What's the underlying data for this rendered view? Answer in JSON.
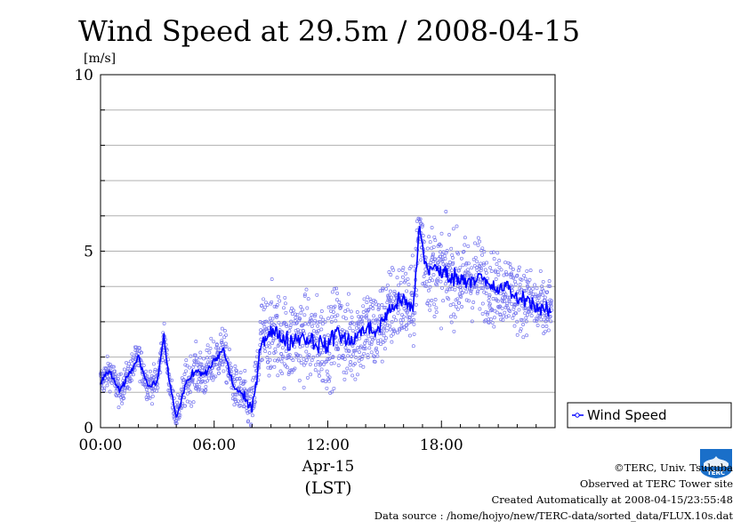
{
  "chart_data": {
    "type": "scatter",
    "title": "Wind Speed at 29.5m / 2008-04-15",
    "ylabel": "[m/s]",
    "ylim": [
      0,
      10
    ],
    "yticks": [
      "0",
      "5",
      "10"
    ],
    "xlim": [
      "2008-04-15 00:00",
      "2008-04-16 00:00"
    ],
    "xticks": [
      "00:00",
      "06:00",
      "12:00",
      "18:00"
    ],
    "xlabel": [
      "Apr-15",
      "(LST)"
    ],
    "grid": true,
    "legend_position": "right",
    "series": [
      {
        "name": "Wind Speed",
        "style": "line with scatter points",
        "x": [
          "00:00",
          "00:30",
          "01:00",
          "01:30",
          "02:00",
          "02:30",
          "03:00",
          "03:20",
          "03:40",
          "04:00",
          "04:30",
          "05:00",
          "05:30",
          "06:00",
          "06:30",
          "07:00",
          "07:30",
          "08:00",
          "08:30",
          "09:00",
          "09:30",
          "10:00",
          "10:30",
          "11:00",
          "11:30",
          "12:00",
          "12:30",
          "13:00",
          "13:30",
          "14:00",
          "14:30",
          "15:00",
          "15:30",
          "16:00",
          "16:30",
          "16:50",
          "17:10",
          "17:30",
          "18:00",
          "18:30",
          "19:00",
          "19:30",
          "20:00",
          "20:30",
          "21:00",
          "21:30",
          "22:00",
          "22:30",
          "23:00",
          "23:30",
          "23:50"
        ],
        "y": [
          1.3,
          1.6,
          1.0,
          1.5,
          2.0,
          1.2,
          1.3,
          2.6,
          1.2,
          0.3,
          1.2,
          1.6,
          1.5,
          1.9,
          2.2,
          1.2,
          0.9,
          0.5,
          2.5,
          2.7,
          2.6,
          2.4,
          2.6,
          2.5,
          2.4,
          2.3,
          2.8,
          2.4,
          2.6,
          2.8,
          2.7,
          3.1,
          3.5,
          3.6,
          3.3,
          5.7,
          4.6,
          4.5,
          4.4,
          4.3,
          4.2,
          4.2,
          4.3,
          4.0,
          3.9,
          4.0,
          3.6,
          3.7,
          3.4,
          3.3,
          3.3
        ],
        "scatter_spread": [
          0.4,
          0.4,
          0.4,
          0.4,
          0.4,
          0.4,
          0.4,
          0.4,
          0.4,
          0.3,
          0.6,
          0.6,
          0.6,
          0.6,
          0.6,
          0.5,
          0.6,
          0.6,
          1.1,
          1.1,
          1.1,
          1.1,
          1.1,
          1.1,
          1.1,
          1.1,
          1.1,
          1.1,
          1.1,
          1.1,
          1.1,
          1.0,
          1.1,
          1.0,
          1.1,
          1.1,
          1.1,
          1.1,
          1.1,
          1.1,
          1.1,
          1.0,
          1.0,
          0.9,
          0.9,
          0.9,
          0.9,
          0.8,
          0.8,
          0.8,
          0.8
        ],
        "color": "#0000ff",
        "point_color": "#7777ee"
      }
    ]
  },
  "credits": {
    "copyright": "©TERC, Univ. Tsukuba",
    "observed": "Observed at TERC Tower site",
    "created": "Created Automatically at 2008-04-15/23:55:48",
    "source": "Data source : /home/hojyo/new/TERC-data/sorted_data/FLUX.10s.dat"
  },
  "logo": {
    "text": "TERC",
    "color": "#1a6fc9"
  }
}
